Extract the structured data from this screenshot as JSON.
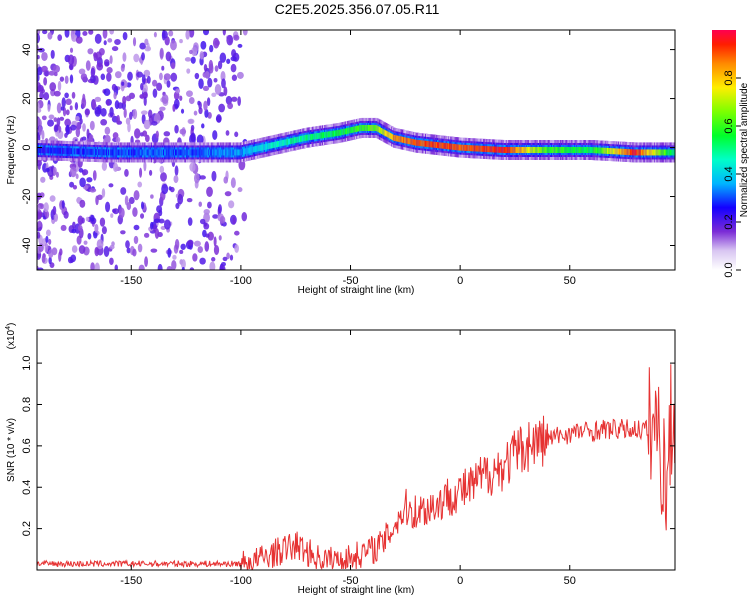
{
  "title": "C2E5.2025.356.07.05.R11",
  "chart_data": [
    {
      "type": "heatmap",
      "xlabel": "Height of straight line (km)",
      "ylabel": "Frequency (Hz)",
      "xlim": [
        -193,
        98
      ],
      "ylim": [
        -50,
        48
      ],
      "xticks": [
        -150,
        -100,
        -50,
        0,
        50
      ],
      "yticks": [
        -40,
        -20,
        0,
        20,
        40
      ],
      "colorbar": {
        "label": "Normalized spectral amplitude",
        "range": [
          0,
          1
        ],
        "ticks": [
          0.0,
          0.2,
          0.4,
          0.6,
          0.8
        ]
      },
      "ridge": {
        "x": [
          -193,
          -160,
          -120,
          -100,
          -85,
          -70,
          -55,
          -45,
          -38,
          -30,
          -20,
          -10,
          0,
          20,
          40,
          60,
          80,
          98
        ],
        "frequency": [
          -1,
          -2,
          -2,
          -2,
          1,
          4,
          6,
          8,
          8,
          4,
          2,
          1,
          0,
          -1,
          -1,
          -1,
          -2,
          -2
        ],
        "peak_amplitude": [
          0.25,
          0.3,
          0.3,
          0.35,
          0.45,
          0.5,
          0.55,
          0.6,
          0.65,
          0.85,
          0.9,
          0.92,
          0.9,
          0.95,
          0.6,
          0.55,
          0.95,
          0.5
        ]
      },
      "grid": false
    },
    {
      "type": "line",
      "xlabel": "Height of straight line (km)",
      "ylabel": "SNR (10 * v/v)",
      "scale_note": "(x10",
      "scale_exp": "4",
      "xlim": [
        -193,
        98
      ],
      "ylim": [
        0,
        1.16
      ],
      "xticks": [
        -150,
        -100,
        -50,
        0,
        50
      ],
      "yticks": [
        0.2,
        0.4,
        0.6,
        0.8,
        1.0
      ],
      "color": "#e63232",
      "series": [
        {
          "x": [
            -193,
            -180,
            -170,
            -160,
            -150,
            -140,
            -130,
            -120,
            -110,
            -100,
            -95,
            -90,
            -85,
            -80,
            -75,
            -70,
            -65,
            -60,
            -55,
            -50,
            -45,
            -40,
            -35,
            -30,
            -25,
            -20,
            -15,
            -10,
            -5,
            0,
            5,
            10,
            15,
            20,
            25,
            30,
            35,
            40,
            45,
            50,
            55,
            60,
            65,
            70,
            75,
            80,
            85,
            88,
            90,
            92,
            94,
            96,
            98
          ],
          "values": [
            0.03,
            0.03,
            0.03,
            0.03,
            0.03,
            0.03,
            0.03,
            0.03,
            0.03,
            0.03,
            0.04,
            0.06,
            0.08,
            0.1,
            0.12,
            0.09,
            0.06,
            0.05,
            0.05,
            0.06,
            0.08,
            0.1,
            0.13,
            0.22,
            0.3,
            0.28,
            0.3,
            0.32,
            0.36,
            0.38,
            0.4,
            0.45,
            0.48,
            0.5,
            0.56,
            0.6,
            0.62,
            0.63,
            0.65,
            0.66,
            0.67,
            0.67,
            0.68,
            0.68,
            0.68,
            0.68,
            0.68,
            0.72,
            0.68,
            0.55,
            0.4,
            0.7,
            0.68
          ]
        }
      ],
      "grid": false
    }
  ]
}
